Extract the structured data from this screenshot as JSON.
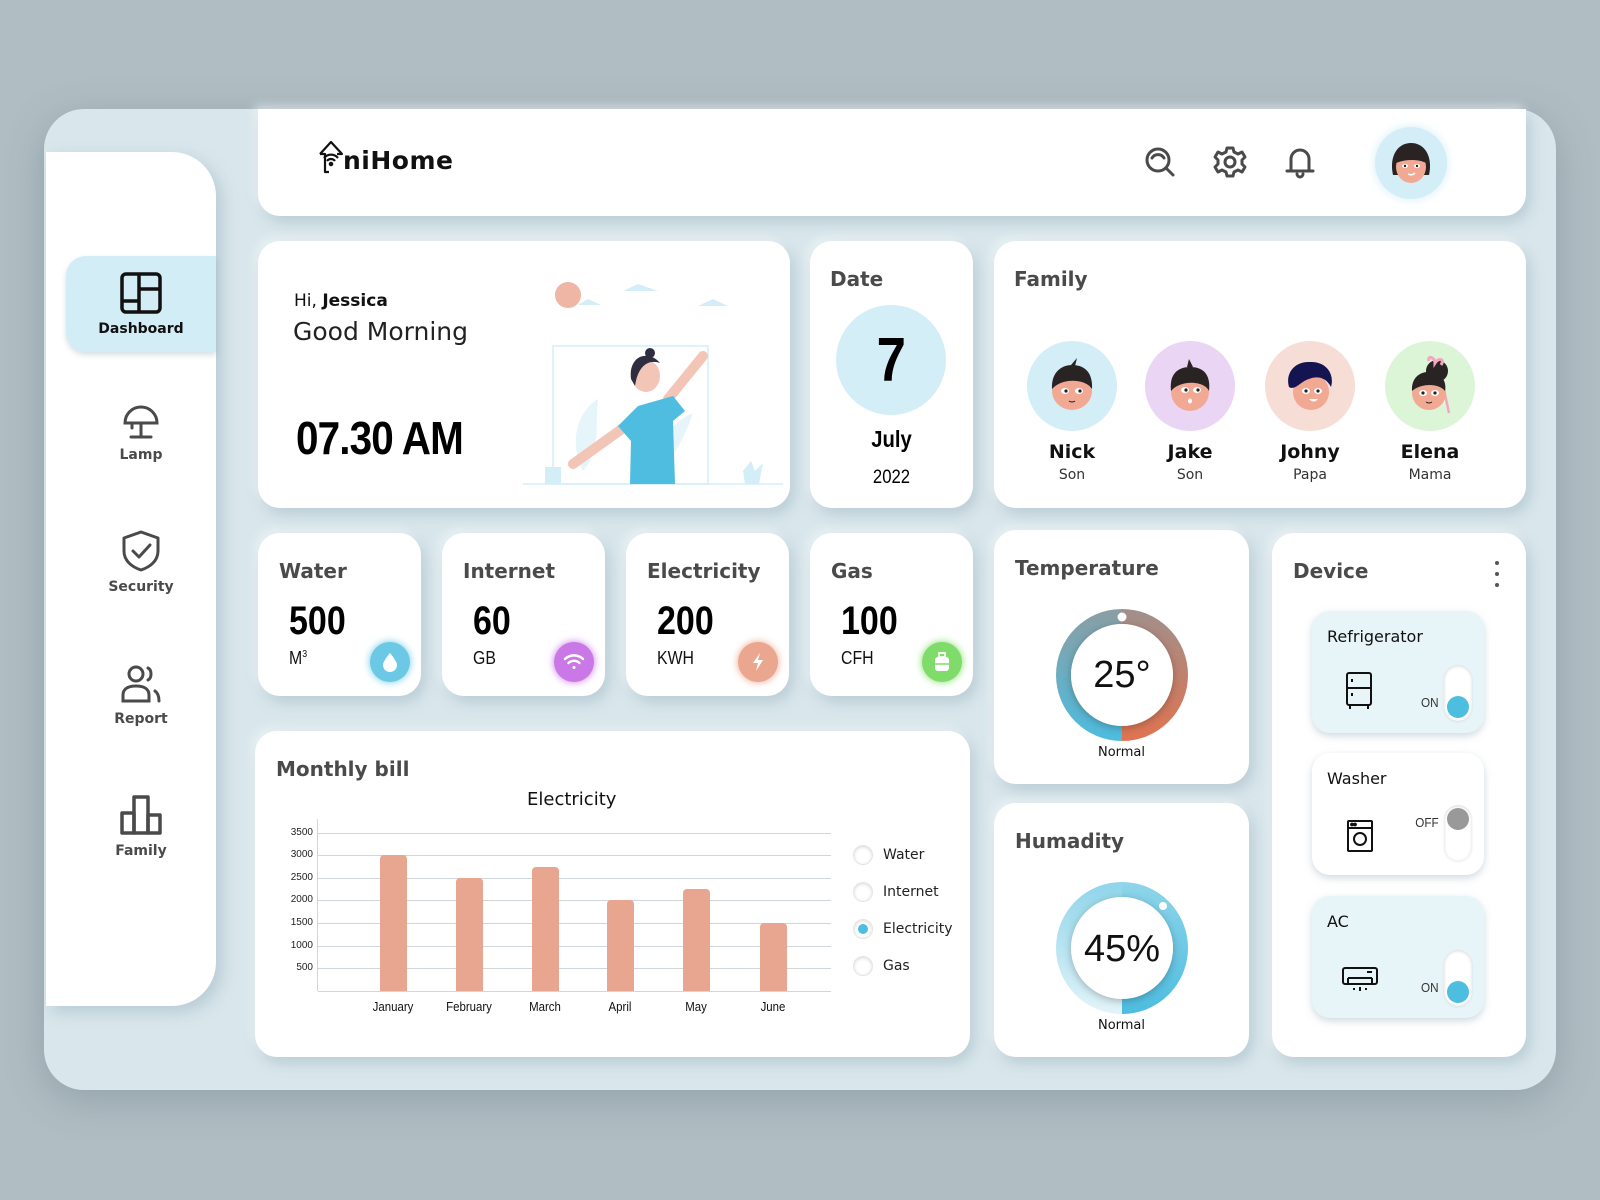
{
  "app": {
    "logo_text": "niHome",
    "logo_prefix": "U"
  },
  "header": {
    "icons": [
      "search-icon",
      "gear-icon",
      "bell-icon"
    ],
    "avatar": "user-avatar-jessica"
  },
  "sidebar": {
    "items": [
      {
        "label": "Dashboard",
        "icon": "dashboard-grid-icon",
        "active": true
      },
      {
        "label": "Lamp",
        "icon": "lamp-icon",
        "active": false
      },
      {
        "label": "Security",
        "icon": "shield-check-icon",
        "active": false
      },
      {
        "label": "Report",
        "icon": "users-icon",
        "active": false
      },
      {
        "label": "Family",
        "icon": "bar-chart-icon",
        "active": false
      }
    ]
  },
  "greeting": {
    "hi": "Hi,",
    "name": "Jessica",
    "message": "Good Morning",
    "time": "07.30 AM"
  },
  "date": {
    "title": "Date",
    "day": "7",
    "month": "July",
    "year": "2022"
  },
  "family": {
    "title": "Family",
    "members": [
      {
        "name": "Nick",
        "role": "Son",
        "bg": "#d4eef7"
      },
      {
        "name": "Jake",
        "role": "Son",
        "bg": "#ead5f5"
      },
      {
        "name": "Johny",
        "role": "Papa",
        "bg": "#f6ddd6"
      },
      {
        "name": "Elena",
        "role": "Mama",
        "bg": "#dcf5d6"
      }
    ]
  },
  "stats": [
    {
      "title": "Water",
      "value": "500",
      "unit": "M",
      "unit_sup": "3",
      "icon": "water-drop-icon",
      "color": "#6cc9e6"
    },
    {
      "title": "Internet",
      "value": "60",
      "unit": "GB",
      "unit_sup": "",
      "icon": "wifi-icon",
      "color": "#c978e6"
    },
    {
      "title": "Electricity",
      "value": "200",
      "unit": "KWH",
      "unit_sup": "",
      "icon": "lightning-icon",
      "color": "#eba690"
    },
    {
      "title": "Gas",
      "value": "100",
      "unit": "CFH",
      "unit_sup": "",
      "icon": "gas-cylinder-icon",
      "color": "#7fdc6a"
    }
  ],
  "monthly_bill": {
    "title": "Monthly bill",
    "legend": [
      {
        "label": "Water",
        "selected": false
      },
      {
        "label": "Internet",
        "selected": false
      },
      {
        "label": "Electricity",
        "selected": true
      },
      {
        "label": "Gas",
        "selected": false
      }
    ]
  },
  "chart_data": {
    "type": "bar",
    "title": "Electricity",
    "categories": [
      "January",
      "February",
      "March",
      "April",
      "May",
      "June"
    ],
    "values": [
      3000,
      2500,
      2750,
      2000,
      2250,
      1500
    ],
    "yticks": [
      500,
      1000,
      1500,
      2000,
      2500,
      3000,
      3500
    ],
    "xlabel": "",
    "ylabel": "",
    "ylim": [
      0,
      3500
    ],
    "grid": true,
    "bar_color": "#e8a590",
    "legend_position": "right"
  },
  "temperature": {
    "title": "Temperature",
    "value": "25°",
    "status": "Normal"
  },
  "humidity": {
    "title": "Humadity",
    "value": "45%",
    "status": "Normal"
  },
  "devices": {
    "title": "Device",
    "items": [
      {
        "name": "Refrigerator",
        "state": "ON",
        "on": true,
        "icon": "refrigerator-icon"
      },
      {
        "name": "Washer",
        "state": "OFF",
        "on": false,
        "icon": "washing-machine-icon"
      },
      {
        "name": "AC",
        "state": "ON",
        "on": true,
        "icon": "air-conditioner-icon"
      }
    ]
  },
  "colors": {
    "accent": "#4dbde0",
    "panel_bg": "#d9e7ec",
    "page_bg": "#b0bec4",
    "active_nav": "#d3edf6"
  }
}
